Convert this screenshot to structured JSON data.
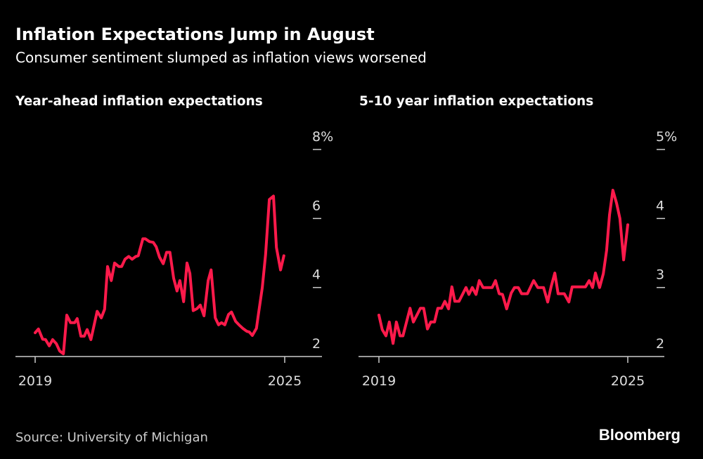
{
  "title": "Inflation Expectations Jump in August",
  "subtitle": "Consumer sentiment slumped as inflation views worsened",
  "source": "Source: University of Michigan",
  "logo": "Bloomberg",
  "colors": {
    "line": "#ff1a4b",
    "background": "#000000",
    "axis": "#cccccc"
  },
  "chart_data": [
    {
      "type": "line",
      "title": "Year-ahead inflation expectations",
      "ylim": [
        2,
        8
      ],
      "yticks": [
        {
          "value": 8,
          "label": "8%"
        },
        {
          "value": 6,
          "label": "6"
        },
        {
          "value": 4,
          "label": "4"
        },
        {
          "value": 2,
          "label": "2"
        }
      ],
      "xlim": [
        2019,
        2025
      ],
      "xticks": [
        {
          "value": 2019,
          "label": "2019"
        },
        {
          "value": 2025,
          "label": "2025"
        }
      ],
      "grid": false,
      "series": [
        {
          "x": [
            2019.0,
            2019.08,
            2019.18,
            2019.25,
            2019.34,
            2019.42,
            2019.51,
            2019.59,
            2019.68,
            2019.76,
            2019.85,
            2019.95,
            2020.01,
            2020.1,
            2020.18,
            2020.25,
            2020.34,
            2020.49,
            2020.59,
            2020.67,
            2020.74,
            2020.83,
            2020.91,
            2021.01,
            2021.08,
            2021.16,
            2021.25,
            2021.33,
            2021.42,
            2021.48,
            2021.59,
            2021.65,
            2021.75,
            2021.84,
            2021.91,
            2021.99,
            2022.08,
            2022.16,
            2022.24,
            2022.33,
            2022.41,
            2022.48,
            2022.57,
            2022.65,
            2022.72,
            2022.8,
            2022.89,
            2022.97,
            2023.06,
            2023.16,
            2023.23,
            2023.33,
            2023.41,
            2023.48,
            2023.56,
            2023.65,
            2023.72,
            2023.82,
            2023.9,
            2023.99,
            2024.09,
            2024.15,
            2024.22,
            2024.32,
            2024.37,
            2024.46,
            2024.54,
            2024.63,
            2024.73,
            2024.8,
            2024.9,
            2024.98
          ],
          "y": [
            2.69,
            2.8,
            2.5,
            2.49,
            2.31,
            2.49,
            2.37,
            2.16,
            2.08,
            3.2,
            2.98,
            2.98,
            3.1,
            2.59,
            2.59,
            2.78,
            2.49,
            3.31,
            3.12,
            3.37,
            4.61,
            4.2,
            4.71,
            4.61,
            4.61,
            4.82,
            4.9,
            4.82,
            4.9,
            4.92,
            5.41,
            5.41,
            5.33,
            5.31,
            5.18,
            4.88,
            4.69,
            5.02,
            5.02,
            4.27,
            3.9,
            4.2,
            3.59,
            4.71,
            4.41,
            3.33,
            3.39,
            3.49,
            3.18,
            4.2,
            4.51,
            3.12,
            2.92,
            2.98,
            2.92,
            3.22,
            3.29,
            3.02,
            2.92,
            2.82,
            2.73,
            2.71,
            2.61,
            2.82,
            3.24,
            4.0,
            4.96,
            6.55,
            6.65,
            5.16,
            4.51,
            4.92
          ]
        }
      ]
    },
    {
      "type": "line",
      "title": "5-10 year inflation expectations",
      "ylim": [
        2,
        5
      ],
      "yticks": [
        {
          "value": 5,
          "label": "5%"
        },
        {
          "value": 4,
          "label": "4"
        },
        {
          "value": 3,
          "label": "3"
        },
        {
          "value": 2,
          "label": "2"
        }
      ],
      "xlim": [
        2019,
        2025
      ],
      "xticks": [
        {
          "value": 2019,
          "label": "2019"
        },
        {
          "value": 2025,
          "label": "2025"
        }
      ],
      "grid": false,
      "series": [
        {
          "x": [
            2019.0,
            2019.08,
            2019.17,
            2019.25,
            2019.34,
            2019.42,
            2019.51,
            2019.58,
            2019.75,
            2019.83,
            2020.0,
            2020.08,
            2020.17,
            2020.25,
            2020.34,
            2020.42,
            2020.51,
            2020.59,
            2020.68,
            2020.76,
            2020.83,
            2020.93,
            2021.1,
            2021.17,
            2021.25,
            2021.34,
            2021.42,
            2021.51,
            2021.73,
            2021.81,
            2021.9,
            2021.98,
            2022.08,
            2022.19,
            2022.27,
            2022.36,
            2022.44,
            2022.58,
            2022.73,
            2022.83,
            2022.97,
            2023.07,
            2023.15,
            2023.24,
            2023.32,
            2023.47,
            2023.58,
            2023.66,
            2023.98,
            2024.07,
            2024.15,
            2024.22,
            2024.32,
            2024.41,
            2024.49,
            2024.56,
            2024.64,
            2024.73,
            2024.81,
            2024.9,
            2025.0
          ],
          "y": [
            2.6,
            2.39,
            2.3,
            2.5,
            2.19,
            2.5,
            2.3,
            2.3,
            2.7,
            2.5,
            2.7,
            2.7,
            2.4,
            2.5,
            2.5,
            2.7,
            2.7,
            2.8,
            2.69,
            3.01,
            2.8,
            2.8,
            3.0,
            2.9,
            3.0,
            2.9,
            3.1,
            3.0,
            3.0,
            3.1,
            2.91,
            2.9,
            2.69,
            2.92,
            3.0,
            3.0,
            2.91,
            2.91,
            3.1,
            3.0,
            3.0,
            2.79,
            3.01,
            3.21,
            2.91,
            2.91,
            2.79,
            3.01,
            3.01,
            3.1,
            3.0,
            3.21,
            3.0,
            3.2,
            3.54,
            4.05,
            4.41,
            4.22,
            4.0,
            3.4,
            3.91
          ]
        }
      ]
    }
  ]
}
